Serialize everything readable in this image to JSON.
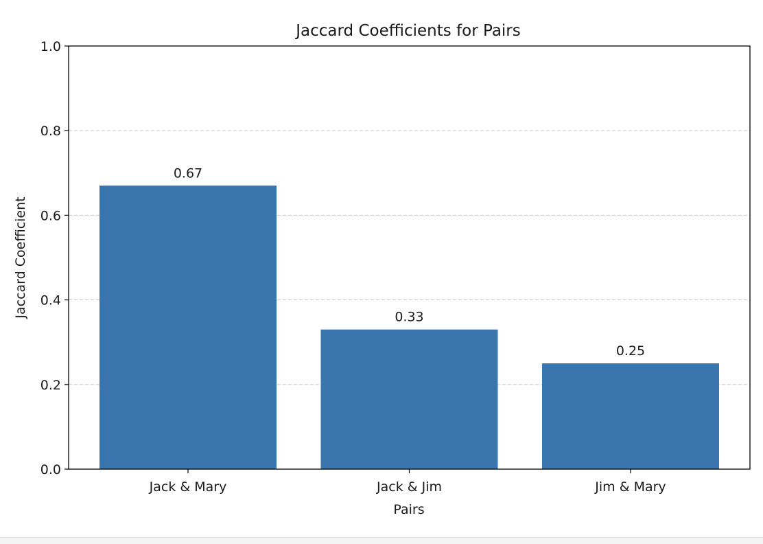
{
  "chart_data": {
    "type": "bar",
    "title": "Jaccard Coefficients for Pairs",
    "xlabel": "Pairs",
    "ylabel": "Jaccard Coefficient",
    "categories": [
      "Jack & Mary",
      "Jack & Jim",
      "Jim & Mary"
    ],
    "values": [
      0.67,
      0.33,
      0.25
    ],
    "data_labels": [
      "0.67",
      "0.33",
      "0.25"
    ],
    "ylim": [
      0,
      1.0
    ],
    "yticks": [
      0.0,
      0.2,
      0.4,
      0.6,
      0.8,
      1.0
    ],
    "ytick_labels": [
      "0.0",
      "0.2",
      "0.4",
      "0.6",
      "0.8",
      "1.0"
    ],
    "grid": "y-axis dashed",
    "bar_color": "#3a75ae",
    "grid_color": "#c8c8c8"
  }
}
